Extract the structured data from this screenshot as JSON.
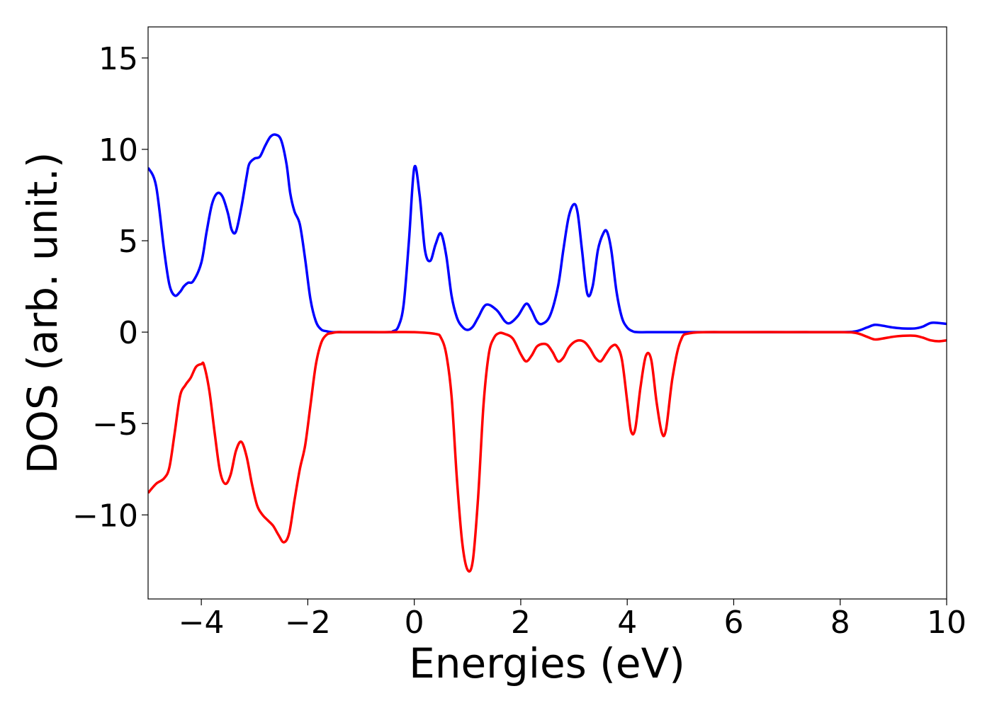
{
  "chart_data": {
    "type": "line",
    "title": "",
    "xlabel": "Energies (eV)",
    "ylabel": "DOS (arb. unit.)",
    "xlim": [
      -5,
      10
    ],
    "ylim": [
      -14.6,
      16.7
    ],
    "x_ticks": [
      -4,
      -2,
      0,
      2,
      4,
      6,
      8,
      10
    ],
    "x_tick_labels": [
      "−4",
      "−2",
      "0",
      "2",
      "4",
      "6",
      "8",
      "10"
    ],
    "y_ticks": [
      15,
      10,
      5,
      0,
      -5,
      -10
    ],
    "y_tick_labels": [
      "15",
      "10",
      "5",
      "0",
      "−5",
      "−10"
    ],
    "grid": false,
    "legend": "none",
    "series": [
      {
        "color": "#0000ff",
        "x": [
          -5.0,
          -4.85,
          -4.7,
          -4.6,
          -4.5,
          -4.4,
          -4.33,
          -4.25,
          -4.15,
          -4.0,
          -3.9,
          -3.8,
          -3.7,
          -3.6,
          -3.5,
          -3.43,
          -3.35,
          -3.25,
          -3.15,
          -3.1,
          -3.0,
          -2.9,
          -2.8,
          -2.7,
          -2.6,
          -2.5,
          -2.4,
          -2.33,
          -2.25,
          -2.15,
          -2.05,
          -1.95,
          -1.85,
          -1.75,
          -1.65,
          -1.55,
          -1.45,
          -1.35,
          -1.25,
          -1.15,
          -1.0,
          -0.5,
          -0.4,
          -0.3,
          -0.2,
          -0.1,
          0.0,
          0.1,
          0.2,
          0.3,
          0.4,
          0.5,
          0.6,
          0.7,
          0.8,
          0.9,
          1.0,
          1.1,
          1.2,
          1.35,
          1.55,
          1.7,
          1.8,
          1.95,
          2.1,
          2.2,
          2.3,
          2.4,
          2.55,
          2.7,
          2.8,
          2.9,
          3.0,
          3.07,
          3.15,
          3.25,
          3.35,
          3.45,
          3.55,
          3.62,
          3.7,
          3.8,
          3.9,
          4.0,
          4.1,
          4.2,
          4.5,
          5.0,
          6.0,
          7.0,
          8.0,
          8.3,
          8.5,
          8.65,
          8.8,
          9.0,
          9.2,
          9.4,
          9.55,
          9.7,
          9.85,
          10.0
        ],
        "y": [
          9.0,
          8.0,
          4.5,
          2.6,
          2.0,
          2.2,
          2.5,
          2.7,
          2.8,
          3.8,
          5.5,
          7.0,
          7.6,
          7.4,
          6.5,
          5.6,
          5.5,
          6.8,
          8.5,
          9.2,
          9.5,
          9.6,
          10.2,
          10.7,
          10.8,
          10.5,
          9.2,
          7.6,
          6.6,
          5.9,
          4.0,
          1.8,
          0.6,
          0.15,
          0.05,
          0.0,
          0.0,
          0.0,
          0.0,
          0.0,
          0.0,
          0.0,
          0.05,
          0.3,
          1.5,
          5.0,
          9.0,
          7.5,
          4.5,
          3.9,
          4.8,
          5.4,
          4.2,
          2.0,
          0.8,
          0.3,
          0.12,
          0.3,
          0.8,
          1.5,
          1.2,
          0.6,
          0.5,
          0.9,
          1.55,
          1.2,
          0.6,
          0.45,
          0.9,
          2.5,
          4.5,
          6.3,
          7.0,
          6.5,
          4.5,
          2.1,
          2.5,
          4.5,
          5.4,
          5.5,
          4.5,
          2.2,
          0.8,
          0.25,
          0.05,
          0.0,
          0.0,
          0.0,
          0.0,
          0.0,
          0.0,
          0.05,
          0.25,
          0.4,
          0.35,
          0.25,
          0.2,
          0.2,
          0.3,
          0.5,
          0.5,
          0.45
        ]
      },
      {
        "color": "#ff0000",
        "x": [
          -5.0,
          -4.85,
          -4.7,
          -4.6,
          -4.5,
          -4.4,
          -4.3,
          -4.2,
          -4.1,
          -4.0,
          -3.95,
          -3.85,
          -3.75,
          -3.65,
          -3.55,
          -3.45,
          -3.35,
          -3.25,
          -3.15,
          -3.05,
          -2.95,
          -2.85,
          -2.75,
          -2.65,
          -2.55,
          -2.45,
          -2.35,
          -2.25,
          -2.15,
          -2.05,
          -1.95,
          -1.85,
          -1.75,
          -1.65,
          -1.55,
          -1.45,
          -1.35,
          -1.25,
          -1.1,
          -0.5,
          0.0,
          0.4,
          0.5,
          0.6,
          0.7,
          0.8,
          0.9,
          1.0,
          1.1,
          1.2,
          1.3,
          1.4,
          1.5,
          1.6,
          1.7,
          1.85,
          2.0,
          2.1,
          2.2,
          2.3,
          2.4,
          2.5,
          2.6,
          2.7,
          2.8,
          2.9,
          3.0,
          3.1,
          3.2,
          3.3,
          3.4,
          3.5,
          3.6,
          3.7,
          3.8,
          3.9,
          4.0,
          4.07,
          4.15,
          4.25,
          4.35,
          4.45,
          4.55,
          4.65,
          4.73,
          4.85,
          5.0,
          5.2,
          6.0,
          7.0,
          8.0,
          8.3,
          8.5,
          8.65,
          8.8,
          9.0,
          9.2,
          9.4,
          9.55,
          9.7,
          9.85,
          10.0
        ],
        "y": [
          -8.8,
          -8.3,
          -8.0,
          -7.4,
          -5.5,
          -3.5,
          -2.9,
          -2.5,
          -1.9,
          -1.75,
          -1.8,
          -3.2,
          -5.5,
          -7.6,
          -8.3,
          -7.8,
          -6.5,
          -6.0,
          -6.8,
          -8.3,
          -9.5,
          -10.0,
          -10.3,
          -10.6,
          -11.1,
          -11.5,
          -11.0,
          -9.2,
          -7.5,
          -6.2,
          -4.0,
          -1.8,
          -0.6,
          -0.15,
          -0.05,
          0.0,
          0.0,
          0.0,
          0.0,
          0.0,
          0.0,
          -0.1,
          -0.3,
          -1.2,
          -3.5,
          -8.0,
          -11.5,
          -13.0,
          -12.5,
          -9.0,
          -4.0,
          -1.2,
          -0.3,
          -0.05,
          -0.1,
          -0.35,
          -1.2,
          -1.6,
          -1.3,
          -0.8,
          -0.65,
          -0.7,
          -1.1,
          -1.6,
          -1.4,
          -0.85,
          -0.55,
          -0.45,
          -0.55,
          -0.9,
          -1.4,
          -1.6,
          -1.2,
          -0.8,
          -0.75,
          -1.5,
          -3.8,
          -5.4,
          -5.3,
          -3.0,
          -1.3,
          -1.5,
          -3.8,
          -5.5,
          -5.3,
          -2.5,
          -0.5,
          -0.05,
          0.0,
          0.0,
          0.0,
          -0.05,
          -0.25,
          -0.4,
          -0.35,
          -0.25,
          -0.2,
          -0.2,
          -0.3,
          -0.45,
          -0.5,
          -0.45
        ]
      }
    ]
  }
}
